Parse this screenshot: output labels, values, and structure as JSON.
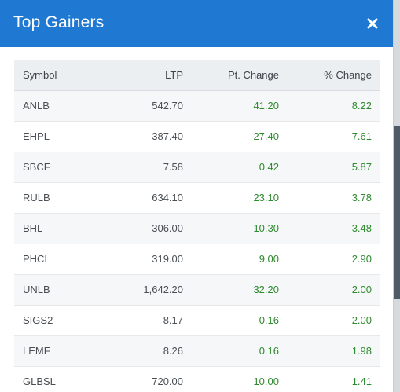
{
  "modal": {
    "title": "Top Gainers",
    "close_icon": "close-icon"
  },
  "colors": {
    "header_bg": "#1f78d1",
    "positive": "#2f8a2f"
  },
  "table": {
    "columns": [
      "Symbol",
      "LTP",
      "Pt. Change",
      "% Change"
    ],
    "rows": [
      {
        "symbol": "ANLB",
        "ltp": "542.70",
        "pt_change": "41.20",
        "pct_change": "8.22"
      },
      {
        "symbol": "EHPL",
        "ltp": "387.40",
        "pt_change": "27.40",
        "pct_change": "7.61"
      },
      {
        "symbol": "SBCF",
        "ltp": "7.58",
        "pt_change": "0.42",
        "pct_change": "5.87"
      },
      {
        "symbol": "RULB",
        "ltp": "634.10",
        "pt_change": "23.10",
        "pct_change": "3.78"
      },
      {
        "symbol": "BHL",
        "ltp": "306.00",
        "pt_change": "10.30",
        "pct_change": "3.48"
      },
      {
        "symbol": "PHCL",
        "ltp": "319.00",
        "pt_change": "9.00",
        "pct_change": "2.90"
      },
      {
        "symbol": "UNLB",
        "ltp": "1,642.20",
        "pt_change": "32.20",
        "pct_change": "2.00"
      },
      {
        "symbol": "SIGS2",
        "ltp": "8.17",
        "pt_change": "0.16",
        "pct_change": "2.00"
      },
      {
        "symbol": "LEMF",
        "ltp": "8.26",
        "pt_change": "0.16",
        "pct_change": "1.98"
      },
      {
        "symbol": "GLBSL",
        "ltp": "720.00",
        "pt_change": "10.00",
        "pct_change": "1.41"
      }
    ]
  }
}
